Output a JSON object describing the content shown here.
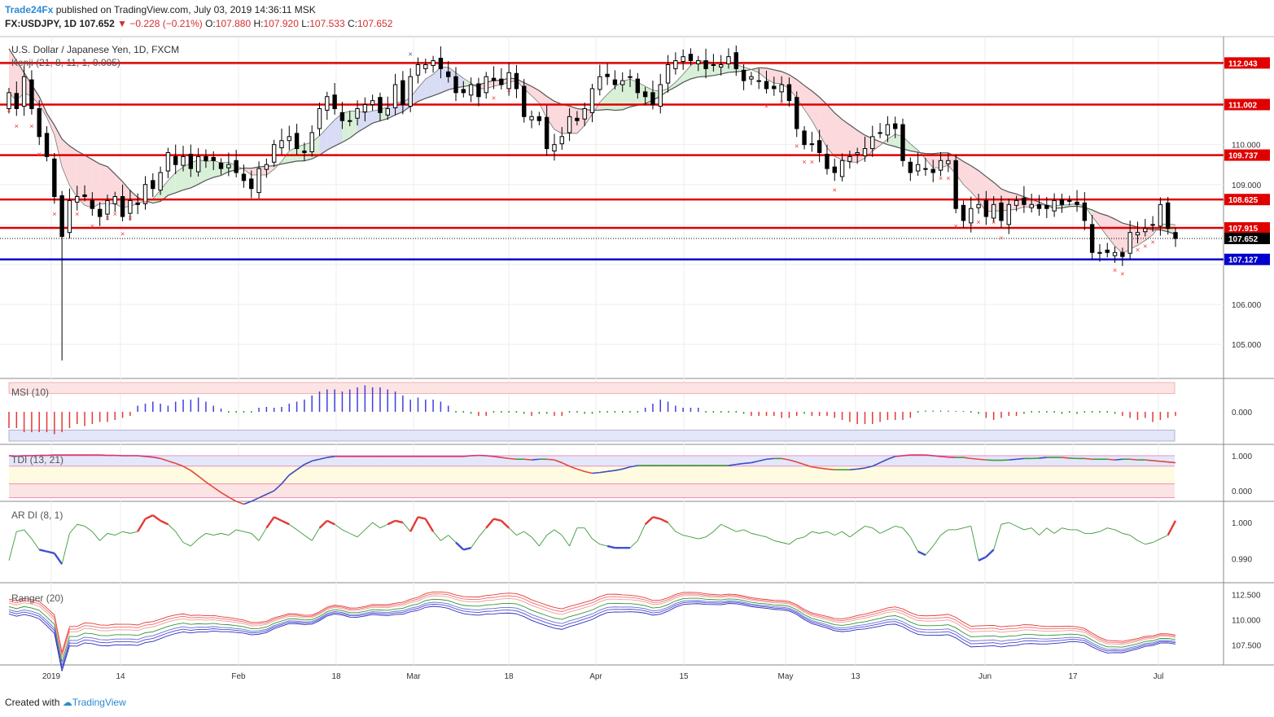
{
  "header": {
    "publisher": "Trade24Fx",
    "published_text": "published on TradingView.com, July 03, 2019 14:36:11 MSK",
    "symbol": "FX:USDJPY, 1D",
    "last": "107.652",
    "change": "−0.228 (−0.21%)",
    "o_label": "O:",
    "o": "107.880",
    "h_label": "H:",
    "h": "107.920",
    "l_label": "L:",
    "l": "107.533",
    "c_label": "C:",
    "c": "107.652"
  },
  "footer": {
    "created_with": "Created with",
    "brand": "TradingView"
  },
  "colors": {
    "up_candle": "#ffffff",
    "down_candle": "#000000",
    "level_red": "#e00000",
    "level_blue": "#0000cc",
    "sell": "#e53935",
    "buy": "#3f51b5"
  },
  "chart_data": [
    {
      "type": "candlestick",
      "title": "U.S. Dollar / Japanese Yen, 1D, FXCM",
      "indicator": "Kenji (21, 8, 11, 1, 0.005)",
      "ylim": [
        104.25,
        112.6
      ],
      "yticks": [
        "105.000",
        "106.000",
        "107.000",
        "108.000",
        "109.000",
        "110.000",
        "111.000",
        "112.000"
      ],
      "x_labels": [
        "2019",
        "14",
        "Feb",
        "18",
        "Mar",
        "18",
        "Apr",
        "15",
        "May",
        "13",
        "Jun",
        "17",
        "Jul"
      ],
      "levels": [
        {
          "value": 112.043,
          "label": "112.043",
          "color": "#e00000"
        },
        {
          "value": 111.002,
          "label": "111.002",
          "color": "#e00000"
        },
        {
          "value": 109.737,
          "label": "109.737",
          "color": "#e00000"
        },
        {
          "value": 108.625,
          "label": "108.625",
          "color": "#e00000"
        },
        {
          "value": 107.915,
          "label": "107.915",
          "color": "#e00000"
        },
        {
          "value": 107.127,
          "label": "107.127",
          "color": "#0000cc"
        }
      ],
      "last_price": {
        "value": 107.652,
        "label": "107.652"
      },
      "closes": [
        111.3,
        110.9,
        111.7,
        110.9,
        110.2,
        109.7,
        108.7,
        107.7,
        108.6,
        108.7,
        108.7,
        108.4,
        108.2,
        108.6,
        108.7,
        108.2,
        108.6,
        108.5,
        109.0,
        108.9,
        109.3,
        109.8,
        109.5,
        109.7,
        109.4,
        109.7,
        109.6,
        109.6,
        109.4,
        109.5,
        109.3,
        109.1,
        108.9,
        109.4,
        109.5,
        110.0,
        110.1,
        110.2,
        109.9,
        109.8,
        110.3,
        110.9,
        111.2,
        110.9,
        110.6,
        110.6,
        110.9,
        111.0,
        111.1,
        110.8,
        110.9,
        111.5,
        111.0,
        111.7,
        112.0,
        112.0,
        112.1,
        111.9,
        111.7,
        111.3,
        111.3,
        111.5,
        111.2,
        111.7,
        111.6,
        111.5,
        111.8,
        111.4,
        110.7,
        110.7,
        110.6,
        109.9,
        110.0,
        110.2,
        110.7,
        110.6,
        110.9,
        111.4,
        111.7,
        111.7,
        111.5,
        111.6,
        111.7,
        111.3,
        111.2,
        111.0,
        111.5,
        112.0,
        112.1,
        112.2,
        112.1,
        112.1,
        111.9,
        112.0,
        112.0,
        112.2,
        111.9,
        111.6,
        111.7,
        111.6,
        111.4,
        111.4,
        111.5,
        111.1,
        110.4,
        110.0,
        110.0,
        109.8,
        109.4,
        109.3,
        109.6,
        109.7,
        109.8,
        109.9,
        110.2,
        110.3,
        110.5,
        110.4,
        109.6,
        109.3,
        109.5,
        109.4,
        109.3,
        109.6,
        109.6,
        108.4,
        108.1,
        108.4,
        108.5,
        108.2,
        108.5,
        108.1,
        108.5,
        108.6,
        108.5,
        108.5,
        108.4,
        108.4,
        108.6,
        108.5,
        108.6,
        108.5,
        108.1,
        107.3,
        107.3,
        107.3,
        107.3,
        107.2,
        107.8,
        107.8,
        107.9,
        108.0,
        108.5,
        107.9,
        107.65
      ]
    },
    {
      "type": "histogram",
      "title": "MSI (10)",
      "ylim": [
        -0.8,
        0.8
      ],
      "yticks": [
        "0.000"
      ],
      "values": [
        -0.4,
        -0.4,
        -0.5,
        -0.5,
        -0.5,
        -0.5,
        -0.55,
        -0.5,
        -0.4,
        -0.3,
        -0.35,
        -0.3,
        -0.25,
        -0.25,
        -0.2,
        -0.15,
        -0.1,
        0.15,
        0.2,
        0.25,
        0.2,
        0.15,
        0.25,
        0.3,
        0.3,
        0.35,
        0.25,
        0.15,
        0.08,
        0.0,
        0.0,
        0.0,
        0.0,
        0.1,
        0.12,
        0.1,
        0.12,
        0.2,
        0.25,
        0.3,
        0.4,
        0.5,
        0.55,
        0.55,
        0.5,
        0.55,
        0.6,
        0.65,
        0.6,
        0.6,
        0.55,
        0.5,
        0.4,
        0.3,
        0.35,
        0.3,
        0.3,
        0.25,
        0.15,
        0.0,
        0.0,
        -0.05,
        -0.1,
        -0.1,
        0.0,
        0.0,
        0.0,
        0.0,
        -0.05,
        -0.1,
        -0.05,
        -0.05,
        -0.1,
        -0.1,
        0.0,
        0.0,
        -0.05,
        -0.05,
        0.0,
        0.0,
        0.0,
        0.0,
        0.0,
        0.0,
        0.1,
        0.2,
        0.3,
        0.25,
        0.15,
        0.1,
        0.1,
        0.1,
        0.0,
        0.0,
        0.0,
        0.0,
        0.0,
        -0.05,
        -0.1,
        -0.1,
        -0.1,
        -0.1,
        -0.15,
        -0.15,
        -0.1,
        -0.05,
        -0.1,
        -0.1,
        -0.1,
        -0.15,
        -0.2,
        -0.25,
        -0.3,
        -0.3,
        -0.3,
        -0.25,
        -0.2,
        -0.2,
        -0.2,
        -0.15,
        0.0,
        0.03,
        0.03,
        0.03,
        0.03,
        0.02,
        0.02,
        0.0,
        -0.05,
        -0.15,
        -0.2,
        -0.15,
        -0.1,
        -0.1,
        -0.05,
        0.0,
        0.0,
        0.0,
        0.0,
        -0.05,
        0.0,
        -0.05,
        0.0,
        0.0,
        0.0,
        0.0,
        -0.05,
        -0.1,
        -0.15,
        -0.2,
        -0.15,
        -0.25,
        -0.2,
        -0.15,
        -0.1,
        -0.1,
        -0.1,
        -0.1,
        -0.1
      ]
    },
    {
      "type": "line",
      "title": "TDI (13, 21)",
      "ylim": [
        -0.3,
        1.3
      ],
      "yticks": [
        "1.000",
        "0.000"
      ],
      "values": [
        1.0,
        0.99,
        1.0,
        1.0,
        1.01,
        1.01,
        1.02,
        1.02,
        1.02,
        1.02,
        1.02,
        1.02,
        1.02,
        1.01,
        1.01,
        1.0,
        1.0,
        1.0,
        0.98,
        0.96,
        0.92,
        0.85,
        0.78,
        0.7,
        0.58,
        0.42,
        0.25,
        0.1,
        -0.05,
        -0.18,
        -0.3,
        -0.38,
        -0.3,
        -0.2,
        -0.1,
        0.0,
        0.2,
        0.45,
        0.6,
        0.75,
        0.85,
        0.9,
        0.95,
        0.98,
        0.98,
        0.98,
        0.98,
        0.98,
        0.98,
        0.98,
        0.98,
        0.98,
        0.98,
        0.98,
        0.98,
        0.98,
        0.98,
        0.98,
        0.98,
        0.98,
        0.98,
        1.0,
        1.01,
        1.0,
        0.98,
        0.95,
        0.92,
        0.9,
        0.9,
        0.88,
        0.9,
        0.9,
        0.88,
        0.8,
        0.7,
        0.62,
        0.55,
        0.5,
        0.52,
        0.55,
        0.58,
        0.62,
        0.68,
        0.72,
        0.72,
        0.72,
        0.72,
        0.72,
        0.72,
        0.72,
        0.72,
        0.72,
        0.72,
        0.72,
        0.72,
        0.72,
        0.75,
        0.78,
        0.8,
        0.85,
        0.9,
        0.92,
        0.92,
        0.88,
        0.82,
        0.75,
        0.68,
        0.65,
        0.62,
        0.6,
        0.6,
        0.6,
        0.62,
        0.65,
        0.7,
        0.8,
        0.9,
        0.98,
        1.0,
        1.02,
        1.02,
        1.02,
        1.0,
        0.98,
        0.96,
        0.95,
        0.95,
        0.92,
        0.9,
        0.88,
        0.87,
        0.87,
        0.88,
        0.9,
        0.92,
        0.92,
        0.93,
        0.95,
        0.95,
        0.95,
        0.93,
        0.92,
        0.92,
        0.9,
        0.9,
        0.9,
        0.88,
        0.9,
        0.9,
        0.88,
        0.88,
        0.86,
        0.84,
        0.82,
        0.8,
        0.76,
        0.7,
        0.68,
        0.68,
        0.7,
        0.75,
        0.8
      ]
    },
    {
      "type": "line",
      "title": "AR DI (8, 1)",
      "ylim": [
        0.9845,
        1.0045
      ],
      "yticks": [
        "1.000",
        "0.990"
      ],
      "values": [
        0.9895,
        0.9975,
        0.998,
        0.9955,
        0.9925,
        0.992,
        0.9915,
        0.9885,
        0.997,
        0.9995,
        0.999,
        0.9975,
        0.995,
        0.997,
        0.9965,
        0.9975,
        0.997,
        0.9975,
        1.001,
        1.002,
        1.0005,
        0.9995,
        0.9975,
        0.9945,
        0.9935,
        0.9955,
        0.997,
        0.9965,
        0.997,
        0.9965,
        0.998,
        0.9975,
        0.997,
        0.995,
        0.9985,
        1.0015,
        1.0005,
        0.9995,
        0.998,
        0.9965,
        0.995,
        0.9985,
        1.0005,
        0.9995,
        0.998,
        0.997,
        0.996,
        0.998,
        1.0,
        0.9985,
        0.9995,
        1.0005,
        1.0,
        0.9975,
        1.0015,
        1.001,
        0.9975,
        0.995,
        0.9965,
        0.9945,
        0.9925,
        0.993,
        0.996,
        0.9985,
        1.001,
        1.0005,
        0.9985,
        0.9965,
        0.9975,
        0.996,
        0.9935,
        0.9965,
        0.998,
        0.9965,
        0.9935,
        0.9985,
        0.9985,
        0.9955,
        0.994,
        0.9935,
        0.993,
        0.993,
        0.993,
        0.995,
        0.9995,
        1.0015,
        1.001,
        1.0,
        0.9975,
        0.9965,
        0.996,
        0.9955,
        0.996,
        0.9975,
        0.9995,
        0.9985,
        0.9975,
        0.998,
        0.997,
        0.9965,
        0.996,
        0.995,
        0.9945,
        0.994,
        0.9955,
        0.996,
        0.9975,
        0.997,
        0.9975,
        0.9965,
        0.9975,
        0.996,
        0.9975,
        0.999,
        0.9985,
        0.997,
        0.998,
        0.999,
        0.9985,
        0.996,
        0.992,
        0.991,
        0.9935,
        0.9965,
        0.998,
        0.998,
        0.9985,
        0.999,
        0.9895,
        0.9905,
        0.9925,
        0.9995,
        1.0,
        0.999,
        0.998,
        0.9985,
        0.9965,
        0.9985,
        0.997,
        0.9985,
        0.998,
        0.998,
        0.997,
        0.997,
        0.9975,
        0.9985,
        0.998,
        0.997,
        0.9965,
        0.995,
        0.994,
        0.9945,
        0.9955,
        0.9965,
        1.0005,
        1.0,
        0.9985,
        0.999,
        0.999,
        0.9935,
        0.993
      ]
    },
    {
      "type": "line",
      "title": "Ranger (20)",
      "ylim": [
        105.5,
        113.6
      ],
      "yticks": [
        "112.500",
        "110.000",
        "107.500"
      ]
    }
  ]
}
